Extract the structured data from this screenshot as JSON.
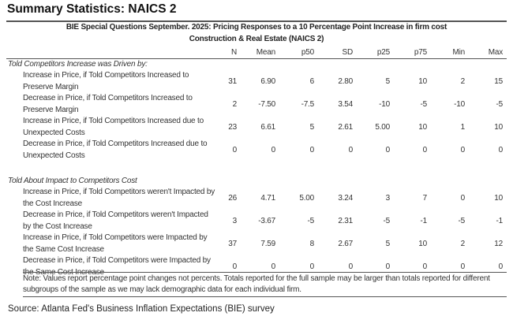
{
  "title": "Summary Statistics: NAICS 2",
  "table": {
    "heading": "BIE Special Questions September. 2025: Pricing Responses to a 10 Percentage Point Increase in firm cost",
    "subheading": "Construction & Real Estate (NAICS 2)",
    "columns": [
      "N",
      "Mean",
      "p50",
      "SD",
      "p25",
      "p75",
      "Min",
      "Max"
    ],
    "sections": [
      {
        "label": "Told Competitors Increase was Driven by:",
        "rows": [
          {
            "label": "Increase in Price, if Told Competitors Increased to Preserve Margin",
            "values": [
              "31",
              "6.90",
              "6",
              "2.80",
              "5",
              "10",
              "2",
              "15"
            ]
          },
          {
            "label": "Decrease in Price, if Told Competitors Increased to Preserve Margin",
            "values": [
              "2",
              "-7.50",
              "-7.5",
              "3.54",
              "-10",
              "-5",
              "-10",
              "-5"
            ]
          },
          {
            "label": "Increase in Price, if Told Competitors Increased due to Unexpected Costs",
            "values": [
              "23",
              "6.61",
              "5",
              "2.61",
              "5.00",
              "10",
              "1",
              "10"
            ]
          },
          {
            "label": "Decrease in Price, if Told Competitors Increased due to Unexpected Costs",
            "values": [
              "0",
              "0",
              "0",
              "0",
              "0",
              "0",
              "0",
              "0"
            ]
          }
        ]
      },
      {
        "label": "Told About Impact to Competitors Cost",
        "rows": [
          {
            "label": "Increase in Price, if Told Competitors weren't Impacted by the Cost Increase",
            "values": [
              "26",
              "4.71",
              "5.00",
              "3.24",
              "3",
              "7",
              "0",
              "10"
            ]
          },
          {
            "label": "Decrease in Price, if Told Competitors weren't Impacted by the Cost Increase",
            "values": [
              "3",
              "-3.67",
              "-5",
              "2.31",
              "-5",
              "-1",
              "-5",
              "-1"
            ]
          },
          {
            "label": "Increase in Price, if Told Competitors were Impacted by the Same Cost Increase",
            "values": [
              "37",
              "7.59",
              "8",
              "2.67",
              "5",
              "10",
              "2",
              "12"
            ]
          },
          {
            "label": "Decrease in Price, if Told Competitors were Impacted by the Same Cost Increase",
            "values": [
              "0",
              "0",
              "0",
              "0",
              "0",
              "0",
              "0",
              "0"
            ]
          }
        ]
      }
    ],
    "note": "Note: Values report percentage point changes not percents. Totals reported for the full sample may be larger than totals reported for different subgroups of the sample as we may lack demographic data for each individual firm."
  },
  "source": "Source: Atlanta Fed's Business Inflation Expectations (BIE) survey"
}
